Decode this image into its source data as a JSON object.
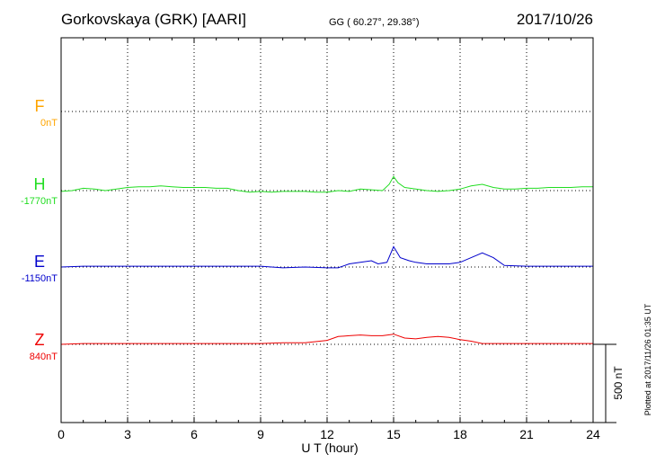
{
  "header": {
    "station": "Gorkovskaya (GRK)  [AARI]",
    "coords": "GG ( 60.27°,  29.38°)",
    "date": "2017/10/26"
  },
  "plotted_note": "Plotted at 2017/11/26 01:35 UT",
  "scale_label": "500 nT",
  "colors": {
    "F": "#ffa500",
    "H": "#22dd22",
    "E": "#0000cc",
    "Z": "#ee0000",
    "frame": "#000000"
  },
  "chart_data": {
    "type": "line",
    "xlabel": "U T (hour)",
    "xlim": [
      0,
      24
    ],
    "x_ticks": [
      "0",
      "3",
      "6",
      "9",
      "12",
      "15",
      "18",
      "21",
      "24"
    ],
    "scale_nT": 500,
    "series": [
      {
        "name": "F",
        "baseline_label": "0nT",
        "x": [],
        "y": []
      },
      {
        "name": "H",
        "baseline_label": "-1770nT",
        "x": [
          0,
          0.5,
          1,
          1.5,
          2,
          2.5,
          3,
          3.5,
          4,
          4.5,
          5,
          5.5,
          6,
          6.5,
          7,
          7.5,
          8,
          8.5,
          9,
          9.5,
          10,
          10.5,
          11,
          11.5,
          12,
          12.5,
          13,
          13.5,
          14,
          14.5,
          14.8,
          15,
          15.2,
          15.5,
          16,
          16.5,
          17,
          17.5,
          18,
          18.5,
          19,
          19.5,
          20,
          20.5,
          21,
          21.5,
          22,
          22.5,
          23,
          23.5,
          24
        ],
        "y": [
          -5,
          0,
          15,
          10,
          0,
          10,
          20,
          25,
          25,
          30,
          25,
          20,
          20,
          20,
          15,
          15,
          0,
          -10,
          -5,
          -10,
          -5,
          -5,
          -5,
          -10,
          -10,
          0,
          -5,
          10,
          5,
          0,
          40,
          90,
          50,
          20,
          10,
          0,
          -5,
          0,
          10,
          30,
          40,
          20,
          10,
          10,
          15,
          15,
          20,
          20,
          20,
          25,
          25
        ]
      },
      {
        "name": "E",
        "baseline_label": "-1150nT",
        "x": [
          0,
          1,
          2,
          3,
          4,
          5,
          6,
          7,
          8,
          9,
          10,
          11,
          12,
          12.5,
          13,
          13.5,
          14,
          14.3,
          14.7,
          15,
          15.3,
          15.7,
          16,
          16.5,
          17,
          17.5,
          18,
          18.5,
          19,
          19.5,
          20,
          21,
          22,
          23,
          24
        ],
        "y": [
          0,
          5,
          5,
          5,
          5,
          5,
          5,
          5,
          5,
          5,
          -5,
          0,
          -5,
          -5,
          20,
          30,
          40,
          20,
          30,
          130,
          60,
          40,
          30,
          20,
          20,
          20,
          30,
          60,
          90,
          60,
          10,
          5,
          5,
          5,
          5
        ]
      },
      {
        "name": "Z",
        "baseline_label": "840nT",
        "x": [
          0,
          1,
          2,
          3,
          4,
          5,
          6,
          7,
          8,
          9,
          10,
          11,
          12,
          12.5,
          13,
          13.5,
          14,
          14.5,
          15,
          15.5,
          16,
          16.5,
          17,
          17.5,
          18,
          18.5,
          19,
          20,
          21,
          22,
          23,
          24
        ],
        "y": [
          0,
          5,
          5,
          5,
          5,
          5,
          5,
          5,
          5,
          5,
          10,
          10,
          25,
          50,
          55,
          60,
          55,
          55,
          65,
          40,
          35,
          45,
          50,
          45,
          30,
          20,
          5,
          5,
          5,
          5,
          5,
          5
        ]
      }
    ]
  }
}
